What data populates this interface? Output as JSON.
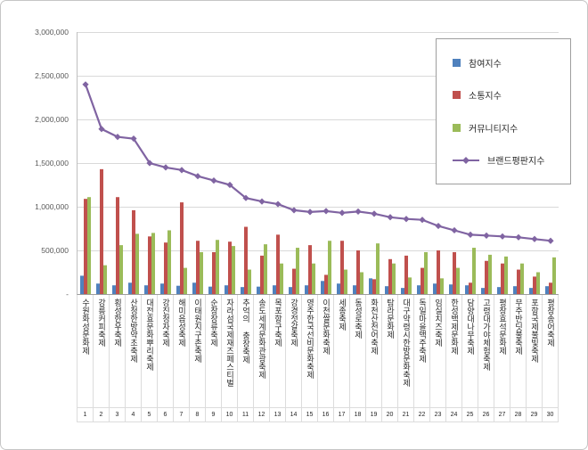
{
  "chart_data": {
    "type": "bar+line",
    "title": "",
    "xlabel": "",
    "ylabel": "",
    "ylim": [
      0,
      3000000
    ],
    "ytick_step": 500000,
    "ytick_labels": [
      "3,000,000",
      "2,500,000",
      "2,000,000",
      "1,500,000",
      "1,000,000",
      "500,000",
      "-"
    ],
    "grid": true,
    "gridline_color": "#d9d9d9",
    "legend_position": "top-right",
    "categories": [
      "수원화성문화제",
      "강릉커피축제",
      "횡성한우축제",
      "산청한방약초축제",
      "대전효문화뿌리축제",
      "강진청자축제",
      "해미읍성축제",
      "이태원지구촌축제",
      "순창장류축제",
      "자라섬국제재즈페스티벌",
      "추억의 충장축제",
      "송도세계문화관광축제",
      "목포항구축제",
      "강경젓갈축제",
      "영주한국선비문화축제",
      "이천쌀문화축제",
      "세종축제",
      "동성로축제",
      "화천산천어축제",
      "탐라문화제",
      "대구약령시한방문화축제",
      "독일마을맥주축제",
      "임실치즈축제",
      "한성백제문화제",
      "담양대나무축제",
      "고령대가야체험축제",
      "평창효석문화제",
      "무주반딧불축제",
      "포항국제불빛축제",
      "평창송어축제"
    ],
    "rank_numbers": [
      "1",
      "2",
      "3",
      "4",
      "5",
      "6",
      "7",
      "8",
      "9",
      "10",
      "11",
      "12",
      "13",
      "14",
      "15",
      "16",
      "17",
      "18",
      "19",
      "20",
      "21",
      "22",
      "23",
      "24",
      "25",
      "26",
      "27",
      "28",
      "29",
      "30"
    ],
    "series": [
      {
        "key": "participation",
        "name": "참여지수",
        "kind": "bar",
        "color": "#4f81bd",
        "values": [
          210000,
          120000,
          100000,
          130000,
          100000,
          120000,
          95000,
          130000,
          85000,
          100000,
          80000,
          85000,
          100000,
          80000,
          100000,
          150000,
          120000,
          100000,
          180000,
          90000,
          70000,
          100000,
          120000,
          110000,
          100000,
          70000,
          80000,
          90000,
          70000,
          90000
        ]
      },
      {
        "key": "communication",
        "name": "소통지수",
        "kind": "bar",
        "color": "#c0504d",
        "values": [
          1090000,
          1430000,
          1110000,
          960000,
          660000,
          590000,
          1050000,
          610000,
          480000,
          600000,
          770000,
          440000,
          680000,
          290000,
          560000,
          220000,
          610000,
          500000,
          170000,
          400000,
          440000,
          300000,
          500000,
          480000,
          130000,
          380000,
          350000,
          280000,
          200000,
          130000
        ]
      },
      {
        "key": "community",
        "name": "커뮤니티지수",
        "kind": "bar",
        "color": "#9bbb59",
        "values": [
          1110000,
          330000,
          560000,
          690000,
          700000,
          730000,
          300000,
          480000,
          620000,
          550000,
          280000,
          570000,
          350000,
          530000,
          350000,
          610000,
          280000,
          250000,
          580000,
          350000,
          190000,
          480000,
          180000,
          300000,
          530000,
          450000,
          430000,
          350000,
          250000,
          420000
        ]
      },
      {
        "key": "brand-index",
        "name": "브랜드평판지수",
        "kind": "line",
        "color": "#8064a2",
        "values": [
          2400000,
          1890000,
          1800000,
          1780000,
          1500000,
          1450000,
          1420000,
          1350000,
          1300000,
          1250000,
          1100000,
          1060000,
          1030000,
          960000,
          940000,
          950000,
          930000,
          945000,
          920000,
          880000,
          860000,
          850000,
          780000,
          730000,
          680000,
          670000,
          660000,
          650000,
          630000,
          610000
        ]
      }
    ]
  }
}
